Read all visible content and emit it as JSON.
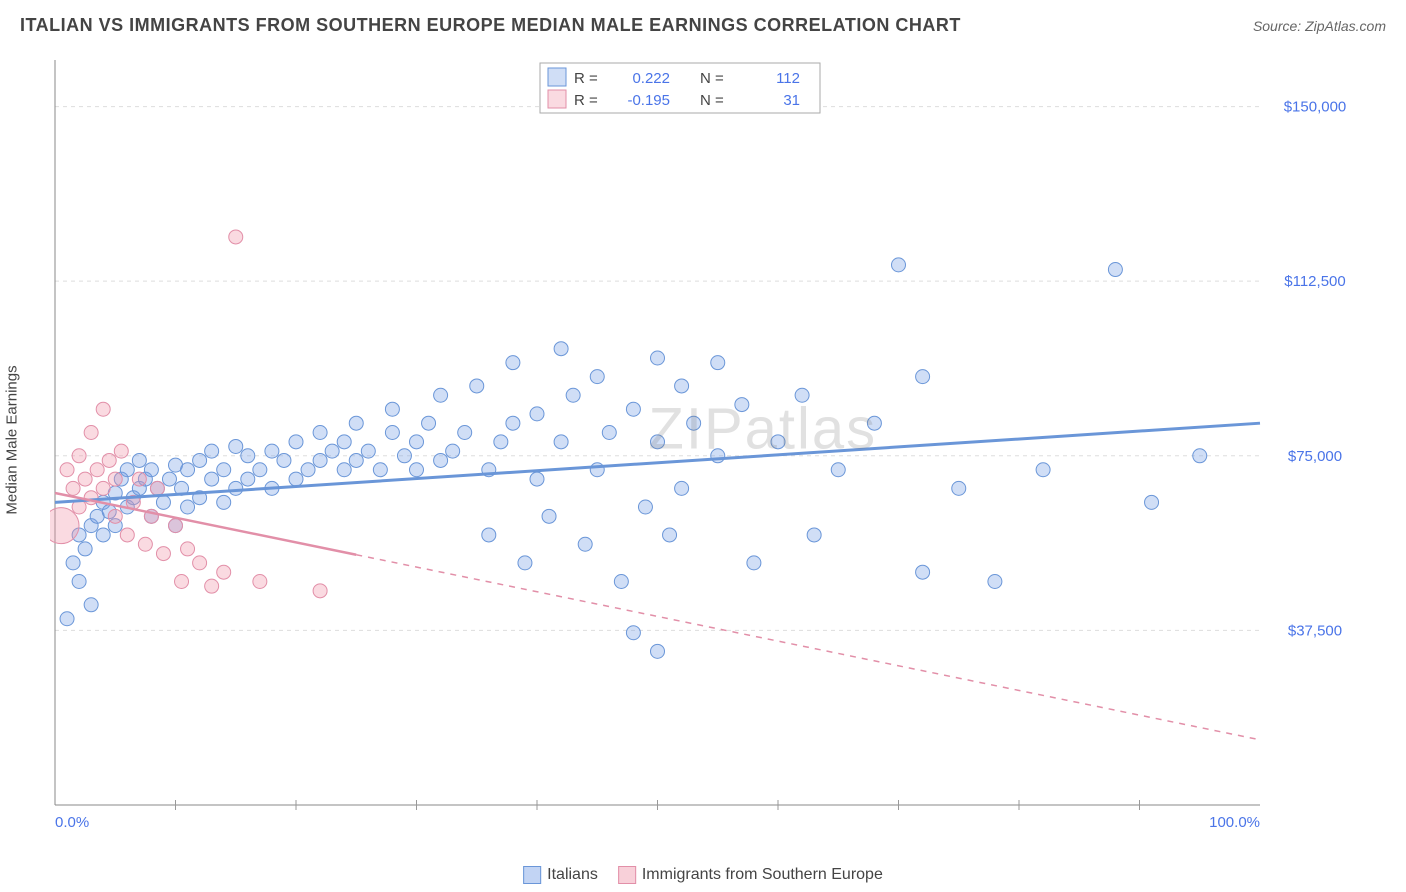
{
  "title": "ITALIAN VS IMMIGRANTS FROM SOUTHERN EUROPE MEDIAN MALE EARNINGS CORRELATION CHART",
  "source": "Source: ZipAtlas.com",
  "watermark": "ZIPatlas",
  "ylabel": "Median Male Earnings",
  "chart": {
    "type": "scatter",
    "xlim": [
      0,
      100
    ],
    "ylim": [
      0,
      160000
    ],
    "xtick_labels": [
      "0.0%",
      "100.0%"
    ],
    "xtick_positions": [
      0,
      100
    ],
    "ytick_labels": [
      "$37,500",
      "$75,000",
      "$112,500",
      "$150,000"
    ],
    "ytick_positions": [
      37500,
      75000,
      112500,
      150000
    ],
    "minor_xticks": [
      10,
      20,
      30,
      40,
      50,
      60,
      70,
      80,
      90
    ],
    "background_color": "#ffffff",
    "grid_color": "#dddddd",
    "axis_color": "#888888",
    "label_color": "#4a74e8",
    "series": [
      {
        "name": "Italians",
        "color_fill": "rgba(120,160,230,0.35)",
        "color_stroke": "#6a96d8",
        "marker_r": 7,
        "R": "0.222",
        "N": "112",
        "trend": {
          "x1": 0,
          "y1": 65000,
          "x2": 100,
          "y2": 82000,
          "dash_from_x": null
        },
        "points": [
          [
            1,
            40000
          ],
          [
            1.5,
            52000
          ],
          [
            2,
            48000
          ],
          [
            2,
            58000
          ],
          [
            2.5,
            55000
          ],
          [
            3,
            43000
          ],
          [
            3,
            60000
          ],
          [
            3.5,
            62000
          ],
          [
            4,
            58000
          ],
          [
            4,
            65000
          ],
          [
            4.5,
            63000
          ],
          [
            5,
            60000
          ],
          [
            5,
            67000
          ],
          [
            5.5,
            70000
          ],
          [
            6,
            64000
          ],
          [
            6,
            72000
          ],
          [
            6.5,
            66000
          ],
          [
            7,
            68000
          ],
          [
            7,
            74000
          ],
          [
            7.5,
            70000
          ],
          [
            8,
            62000
          ],
          [
            8,
            72000
          ],
          [
            8.5,
            68000
          ],
          [
            9,
            65000
          ],
          [
            9.5,
            70000
          ],
          [
            10,
            60000
          ],
          [
            10,
            73000
          ],
          [
            10.5,
            68000
          ],
          [
            11,
            64000
          ],
          [
            11,
            72000
          ],
          [
            12,
            66000
          ],
          [
            12,
            74000
          ],
          [
            13,
            70000
          ],
          [
            13,
            76000
          ],
          [
            14,
            65000
          ],
          [
            14,
            72000
          ],
          [
            15,
            68000
          ],
          [
            15,
            77000
          ],
          [
            16,
            70000
          ],
          [
            16,
            75000
          ],
          [
            17,
            72000
          ],
          [
            18,
            68000
          ],
          [
            18,
            76000
          ],
          [
            19,
            74000
          ],
          [
            20,
            70000
          ],
          [
            20,
            78000
          ],
          [
            21,
            72000
          ],
          [
            22,
            74000
          ],
          [
            22,
            80000
          ],
          [
            23,
            76000
          ],
          [
            24,
            72000
          ],
          [
            24,
            78000
          ],
          [
            25,
            74000
          ],
          [
            25,
            82000
          ],
          [
            26,
            76000
          ],
          [
            27,
            72000
          ],
          [
            28,
            80000
          ],
          [
            28,
            85000
          ],
          [
            29,
            75000
          ],
          [
            30,
            72000
          ],
          [
            30,
            78000
          ],
          [
            31,
            82000
          ],
          [
            32,
            74000
          ],
          [
            32,
            88000
          ],
          [
            33,
            76000
          ],
          [
            34,
            80000
          ],
          [
            35,
            90000
          ],
          [
            36,
            72000
          ],
          [
            36,
            58000
          ],
          [
            37,
            78000
          ],
          [
            38,
            82000
          ],
          [
            38,
            95000
          ],
          [
            39,
            52000
          ],
          [
            40,
            70000
          ],
          [
            40,
            84000
          ],
          [
            41,
            62000
          ],
          [
            42,
            78000
          ],
          [
            42,
            98000
          ],
          [
            43,
            88000
          ],
          [
            44,
            56000
          ],
          [
            45,
            72000
          ],
          [
            45,
            92000
          ],
          [
            46,
            80000
          ],
          [
            47,
            48000
          ],
          [
            48,
            85000
          ],
          [
            48,
            37000
          ],
          [
            49,
            64000
          ],
          [
            50,
            78000
          ],
          [
            50,
            33000
          ],
          [
            51,
            58000
          ],
          [
            52,
            90000
          ],
          [
            52,
            68000
          ],
          [
            53,
            82000
          ],
          [
            55,
            75000
          ],
          [
            55,
            95000
          ],
          [
            57,
            86000
          ],
          [
            58,
            52000
          ],
          [
            60,
            78000
          ],
          [
            62,
            88000
          ],
          [
            63,
            58000
          ],
          [
            65,
            72000
          ],
          [
            68,
            82000
          ],
          [
            70,
            116000
          ],
          [
            72,
            50000
          ],
          [
            75,
            68000
          ],
          [
            78,
            48000
          ],
          [
            82,
            72000
          ],
          [
            88,
            115000
          ],
          [
            91,
            65000
          ],
          [
            95,
            75000
          ],
          [
            72,
            92000
          ],
          [
            50,
            96000
          ]
        ]
      },
      {
        "name": "Immigrants from Southern Europe",
        "color_fill": "rgba(240,150,170,0.35)",
        "color_stroke": "#e28fa8",
        "marker_r": 7,
        "R": "-0.195",
        "N": "31",
        "trend": {
          "x1": 0,
          "y1": 67000,
          "x2": 100,
          "y2": 14000,
          "dash_from_x": 25
        },
        "points": [
          [
            0.5,
            60000,
            18
          ],
          [
            1,
            72000
          ],
          [
            1.5,
            68000
          ],
          [
            2,
            64000
          ],
          [
            2,
            75000
          ],
          [
            2.5,
            70000
          ],
          [
            3,
            66000
          ],
          [
            3,
            80000
          ],
          [
            3.5,
            72000
          ],
          [
            4,
            68000
          ],
          [
            4,
            85000
          ],
          [
            4.5,
            74000
          ],
          [
            5,
            62000
          ],
          [
            5,
            70000
          ],
          [
            5.5,
            76000
          ],
          [
            6,
            58000
          ],
          [
            6.5,
            65000
          ],
          [
            7,
            70000
          ],
          [
            7.5,
            56000
          ],
          [
            8,
            62000
          ],
          [
            8.5,
            68000
          ],
          [
            9,
            54000
          ],
          [
            10,
            60000
          ],
          [
            10.5,
            48000
          ],
          [
            11,
            55000
          ],
          [
            12,
            52000
          ],
          [
            13,
            47000
          ],
          [
            14,
            50000
          ],
          [
            15,
            122000
          ],
          [
            17,
            48000
          ],
          [
            22,
            46000
          ]
        ]
      }
    ]
  },
  "legend": {
    "items": [
      {
        "label": "Italians",
        "fill": "rgba(120,160,230,0.45)",
        "stroke": "#6a96d8"
      },
      {
        "label": "Immigrants from Southern Europe",
        "fill": "rgba(240,150,170,0.45)",
        "stroke": "#e28fa8"
      }
    ]
  }
}
